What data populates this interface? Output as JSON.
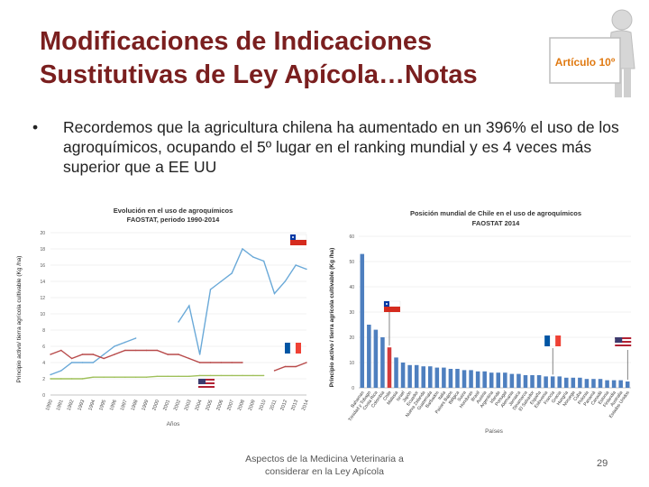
{
  "slide": {
    "title_line1": "Modificaciones de Indicaciones",
    "title_line2": "Sustitutivas de Ley Apícola…Notas",
    "sign_text": "Artículo 10º",
    "bullet": "Recordemos que la agricultura chilena ha aumentado en un 396% el uso de los agroquímicos, ocupando el 5º lugar en el ranking mundial y es 4 veces más superior que a EE UU",
    "footer_line1": "Aspectos de la Medicina Veterinaria a",
    "footer_line2": "considerar en la Ley Apícola",
    "page_number": "29"
  },
  "colors": {
    "title": "#7a1f1f",
    "chile_line": "#6aa9d8",
    "usa_line": "#b84a4a",
    "france_line": "#9fc05a",
    "bar_default": "#4e7fbf",
    "bar_chile": "#d43a3a"
  },
  "chart_data": [
    {
      "type": "line",
      "title": "Evolución en el uso de agroquímicos",
      "subtitle": "FAOSTAT, periodo 1990-2014",
      "xlabel": "Años",
      "ylabel": "Principio activo/ tierra agrícola cultivable (Kg /ha)",
      "x": [
        "1990",
        "1991",
        "1992",
        "1993",
        "1994",
        "1995",
        "1996",
        "1997",
        "1998",
        "1999",
        "2000",
        "2001",
        "2002",
        "2003",
        "2004",
        "2005",
        "2006",
        "2007",
        "2008",
        "2009",
        "2010",
        "2011",
        "2012",
        "2013",
        "2014"
      ],
      "ylim": [
        0,
        20
      ],
      "yticks": [
        "0",
        "2",
        "4",
        "6",
        "8",
        "10",
        "12",
        "14",
        "16",
        "18",
        "20"
      ],
      "series": [
        {
          "name": "Chile",
          "color": "#6aa9d8",
          "values": [
            2.5,
            3,
            4,
            4,
            4,
            5,
            6,
            6.5,
            7,
            null,
            null,
            null,
            9,
            11,
            5,
            13,
            14,
            15,
            18,
            17,
            16.5,
            12.5,
            14,
            16,
            15.5
          ]
        },
        {
          "name": "EE UU",
          "color": "#b84a4a",
          "values": [
            5,
            5.5,
            4.5,
            5,
            5,
            4.5,
            5,
            5.5,
            5.5,
            5.5,
            5.5,
            5,
            5,
            4.5,
            4,
            4,
            4,
            4,
            4,
            null,
            null,
            3,
            3.5,
            3.5,
            4
          ]
        },
        {
          "name": "Francia",
          "color": "#9fc05a",
          "values": [
            2,
            2,
            2,
            2,
            2.2,
            2.2,
            2.2,
            2.2,
            2.2,
            2.2,
            2.3,
            2.3,
            2.3,
            2.3,
            2.4,
            2.4,
            2.4,
            2.4,
            2.4,
            2.4,
            2.4,
            null,
            null,
            null,
            null
          ]
        }
      ]
    },
    {
      "type": "bar",
      "title": "Posición mundial de Chile en el uso de agroquímicos",
      "subtitle": "FAOSTAT 2014",
      "xlabel": "Países",
      "ylabel": "Principio activo / tierra agrícola cultivable (Kg /ha)",
      "ylim": [
        0,
        60
      ],
      "yticks": [
        "0",
        "10",
        "20",
        "30",
        "40",
        "50",
        "60"
      ],
      "categories": [
        "Bahamas",
        "Trinidad y Tobago",
        "Costa Rica",
        "Colombia",
        "Chile",
        "Malasia",
        "Israel",
        "Japón",
        "Ecuador",
        "Nueva Zelanda",
        "Guatemala",
        "Barbados",
        "Italia",
        "Países Bajos",
        "Bélgica",
        "Suiza",
        "Honduras",
        "Brasil",
        "Austria",
        "Argentina",
        "Irlanda",
        "Portugal",
        "Alemania",
        "Jamaica",
        "Dinamarca",
        "El Salvador",
        "España",
        "Eslovenia",
        "Francia",
        "Grecia",
        "Hungría",
        "Noruega",
        "Cuba",
        "Polonia",
        "Panamá",
        "Canadá",
        "Estonia",
        "Finlandia",
        "Australia",
        "Estados Unidos"
      ],
      "values": [
        53,
        25,
        23,
        20,
        16,
        12,
        10,
        9,
        9,
        8.5,
        8.5,
        8,
        8,
        7.5,
        7.5,
        7,
        7,
        6.5,
        6.5,
        6,
        6,
        6,
        5.5,
        5.5,
        5,
        5,
        5,
        4.5,
        4.5,
        4.5,
        4,
        4,
        4,
        3.5,
        3.5,
        3.5,
        3,
        3,
        3,
        2.5
      ],
      "highlight": [
        "Chile",
        "Francia",
        "Estados Unidos"
      ]
    }
  ]
}
